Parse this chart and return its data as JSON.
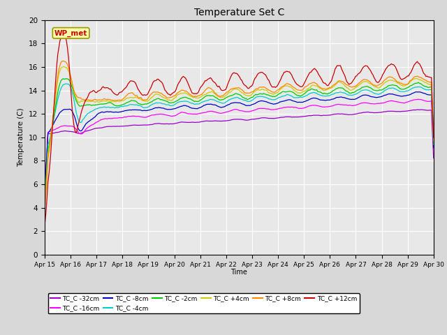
{
  "title": "Temperature Set C",
  "xlabel": "Time",
  "ylabel": "Temperature (C)",
  "ylim": [
    0,
    20
  ],
  "x_tick_labels": [
    "Apr 15",
    "Apr 16",
    "Apr 17",
    "Apr 18",
    "Apr 19",
    "Apr 20",
    "Apr 21",
    "Apr 22",
    "Apr 23",
    "Apr 24",
    "Apr 25",
    "Apr 26",
    "Apr 27",
    "Apr 28",
    "Apr 29",
    "Apr 30"
  ],
  "series": [
    {
      "label": "TC_C -32cm",
      "color": "#9900cc"
    },
    {
      "label": "TC_C -16cm",
      "color": "#ff00ff"
    },
    {
      "label": "TC_C -8cm",
      "color": "#0000cc"
    },
    {
      "label": "TC_C -4cm",
      "color": "#00cccc"
    },
    {
      "label": "TC_C -2cm",
      "color": "#00cc00"
    },
    {
      "label": "TC_C +4cm",
      "color": "#cccc00"
    },
    {
      "label": "TC_C +8cm",
      "color": "#ff8800"
    },
    {
      "label": "TC_C +12cm",
      "color": "#cc0000"
    }
  ],
  "wp_met_box_color": "#ffffaa",
  "wp_met_text_color": "#cc0000",
  "wp_met_border_color": "#999900",
  "bg_color": "#d8d8d8",
  "plot_bg_color": "#e8e8e8"
}
